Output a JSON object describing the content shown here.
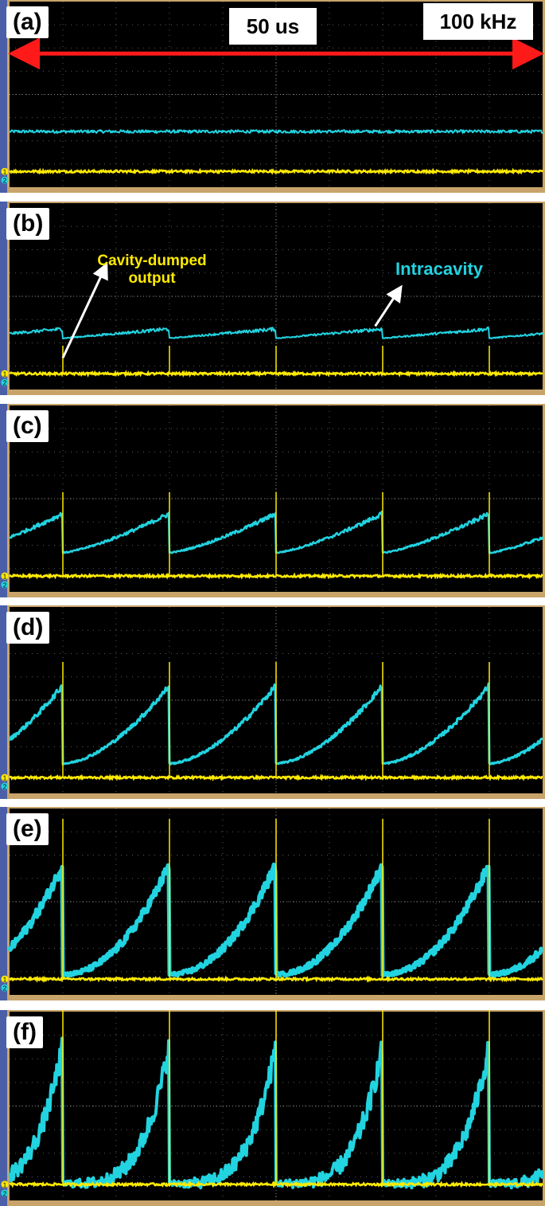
{
  "colors": {
    "screen": "#000000",
    "grid": "#5a5a5a",
    "frame": "#c8a46a",
    "left_bar": "#4a5fa8",
    "intracavity": "#22d3e0",
    "output": "#ffea00",
    "arrow_red": "#ff1a1a",
    "arrow_white": "#ffffff"
  },
  "annotations": {
    "timespan": "50 us",
    "rep_rate": "100 kHz",
    "output_label": "Cavity-dumped\noutput",
    "intracavity_label": "Intracavity"
  },
  "channel_markers": [
    "1",
    "2"
  ],
  "chart_data": [
    {
      "type": "line",
      "panel": "(a)",
      "x_range_us": [
        0,
        50
      ],
      "grid": true,
      "intracavity": {
        "shape": "flat",
        "level": 0.3,
        "noise": 0.008
      },
      "output": {
        "level": 0.085,
        "noise": 0.006,
        "pulses": false
      }
    },
    {
      "type": "line",
      "panel": "(b)",
      "x_range_us": [
        0,
        50
      ],
      "grid": true,
      "period_us": 10,
      "first_dump_us": 5,
      "intracavity": {
        "shape": "ramp",
        "base": 0.275,
        "peak": 0.325,
        "curve": 1.0,
        "noise": 0.008,
        "width": 2
      },
      "output": {
        "level": 0.085,
        "noise": 0.006,
        "pulses": true,
        "pulse_height": 0.15
      }
    },
    {
      "type": "line",
      "panel": "(c)",
      "x_range_us": [
        0,
        50
      ],
      "grid": true,
      "period_us": 10,
      "first_dump_us": 5,
      "intracavity": {
        "shape": "ramp",
        "base": 0.21,
        "peak": 0.42,
        "curve": 1.35,
        "noise": 0.01,
        "width": 2.5
      },
      "output": {
        "level": 0.085,
        "noise": 0.006,
        "pulses": true,
        "pulse_height": 0.45
      }
    },
    {
      "type": "line",
      "panel": "(d)",
      "x_range_us": [
        0,
        50
      ],
      "grid": true,
      "period_us": 10,
      "first_dump_us": 5,
      "intracavity": {
        "shape": "ramp",
        "base": 0.16,
        "peak": 0.58,
        "curve": 1.7,
        "noise": 0.012,
        "width": 3
      },
      "output": {
        "level": 0.085,
        "noise": 0.006,
        "pulses": true,
        "pulse_height": 0.62
      }
    },
    {
      "type": "line",
      "panel": "(e)",
      "x_range_us": [
        0,
        50
      ],
      "grid": true,
      "period_us": 10,
      "first_dump_us": 5,
      "intracavity": {
        "shape": "ramp",
        "base": 0.11,
        "peak": 0.7,
        "curve": 2.1,
        "noise": 0.025,
        "width": 5
      },
      "output": {
        "level": 0.085,
        "noise": 0.006,
        "pulses": true,
        "pulse_height": 0.86
      }
    },
    {
      "type": "line",
      "panel": "(f)",
      "x_range_us": [
        0,
        50
      ],
      "grid": true,
      "period_us": 10,
      "first_dump_us": 5,
      "intracavity": {
        "shape": "ramp",
        "base": 0.09,
        "peak": 0.82,
        "curve": 4.0,
        "noise": 0.05,
        "width": 4
      },
      "output": {
        "level": 0.085,
        "noise": 0.006,
        "pulses": true,
        "pulse_height": 0.93
      }
    }
  ]
}
